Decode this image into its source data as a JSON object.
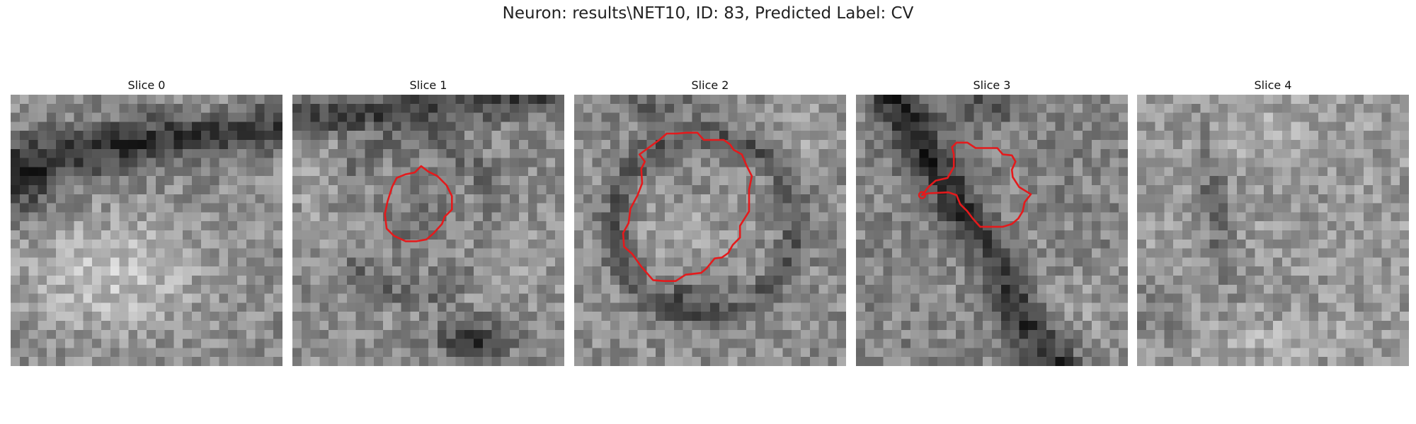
{
  "figure": {
    "title": "Neuron: results\\NET10, ID: 83, Predicted Label: CV"
  },
  "image_grid": {
    "size": 30,
    "value_range": [
      0,
      255
    ]
  },
  "contour_color": "#e41a1c",
  "slices": [
    {
      "title": "Slice 0"
    },
    {
      "title": "Slice 1"
    },
    {
      "title": "Slice 2"
    },
    {
      "title": "Slice 3"
    },
    {
      "title": "Slice 4"
    }
  ]
}
